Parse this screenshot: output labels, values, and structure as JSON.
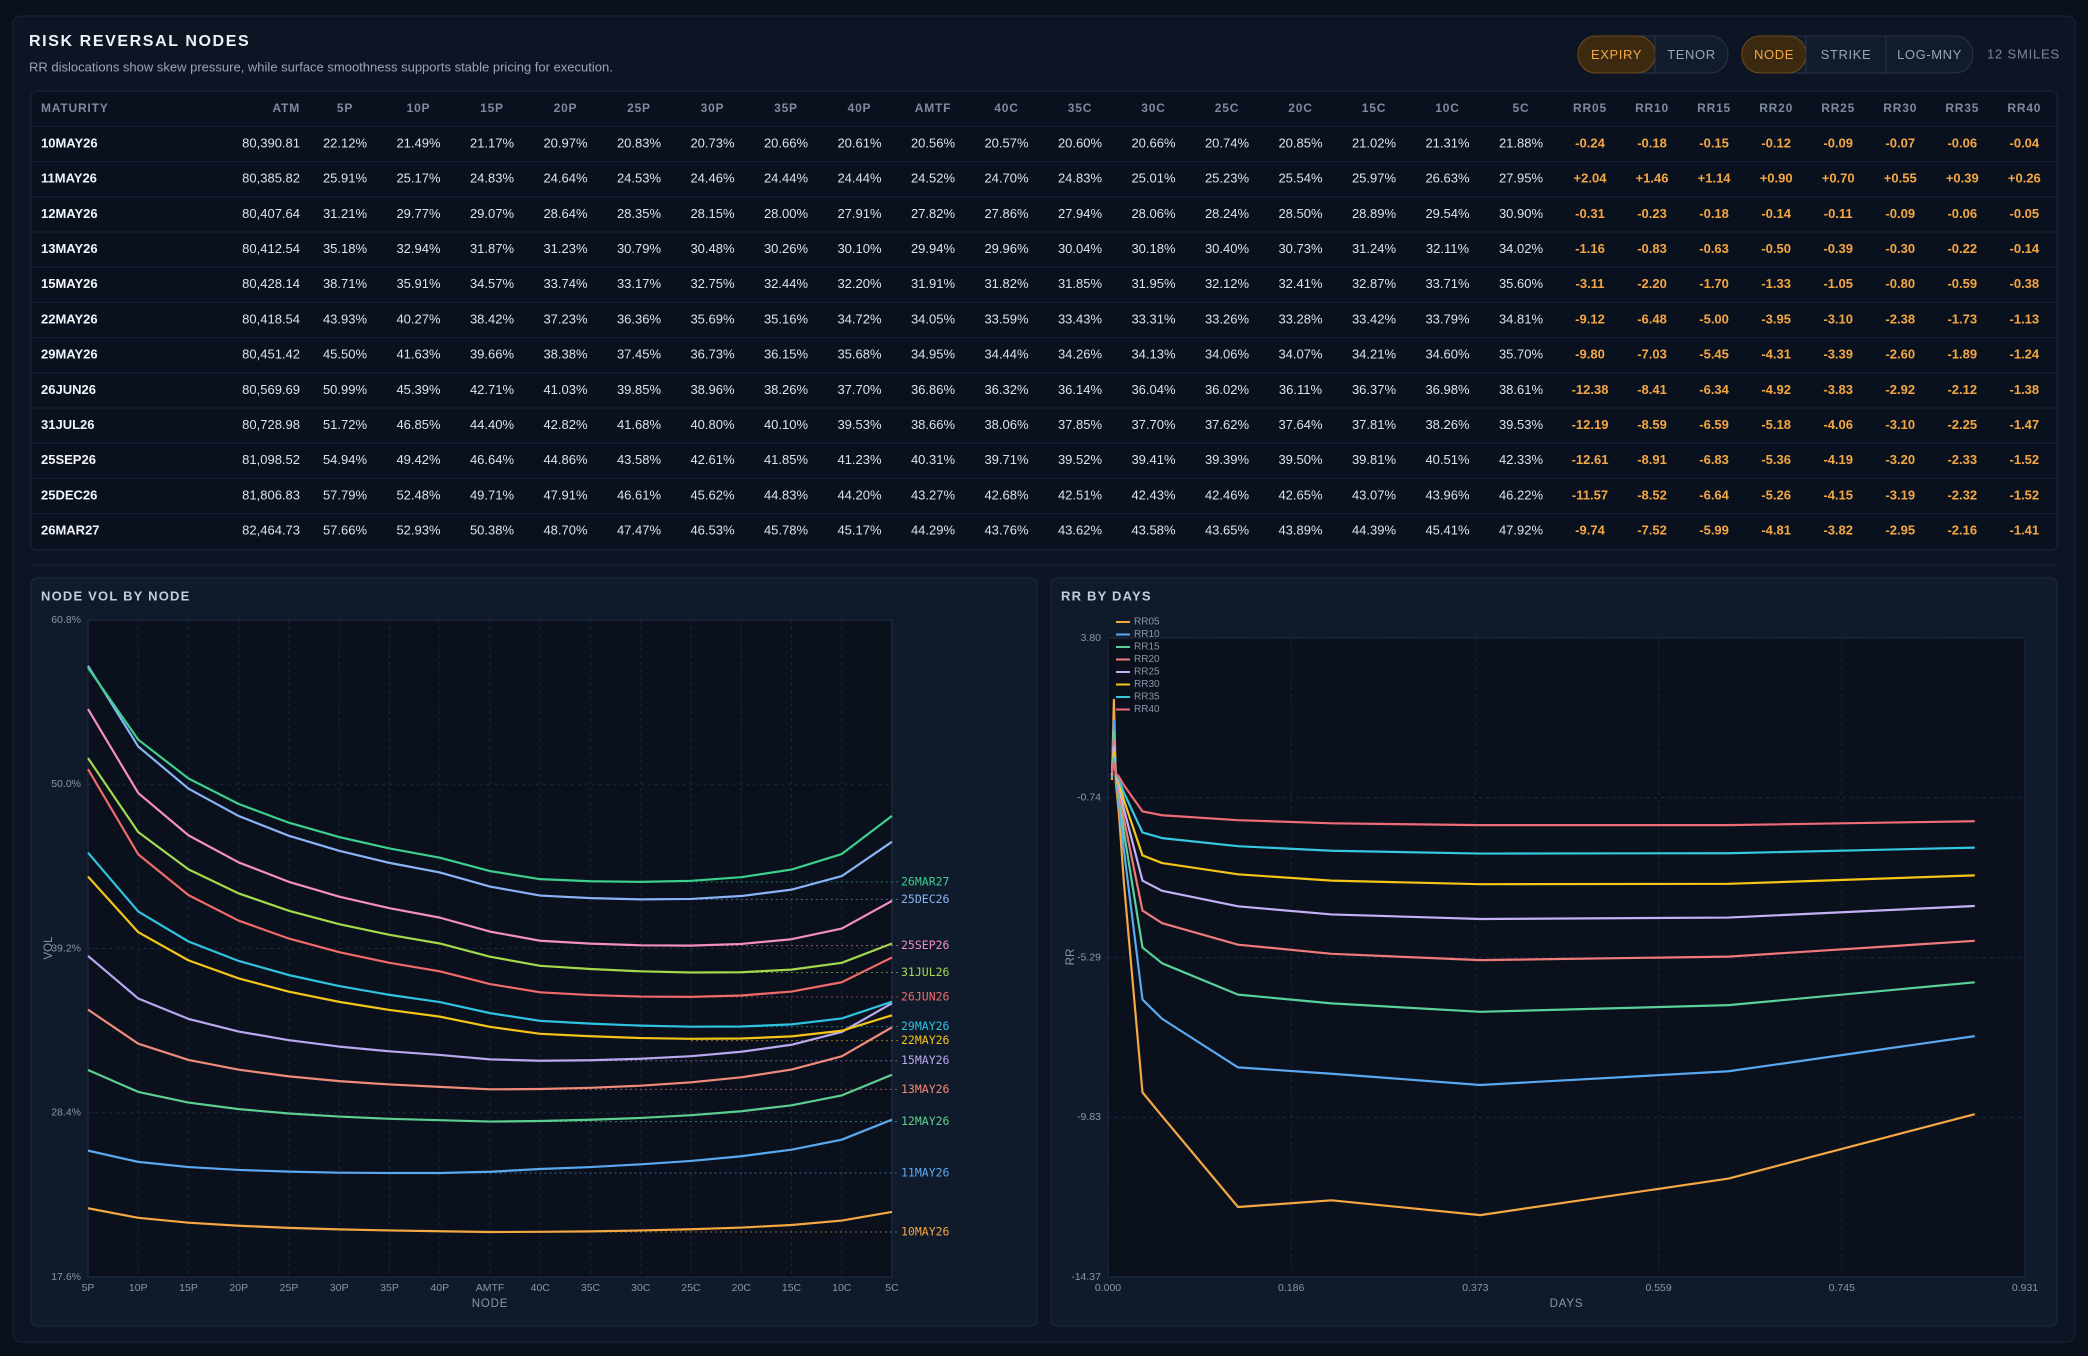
{
  "header": {
    "title": "RISK REVERSAL NODES",
    "subtitle": "RR dislocations show skew pressure, while surface smoothness supports stable pricing for execution.",
    "toggles": [
      {
        "options": [
          "EXPIRY",
          "TENOR"
        ],
        "active": "EXPIRY"
      },
      {
        "options": [
          "NODE",
          "STRIKE",
          "LOG-MNY"
        ],
        "active": "NODE"
      }
    ],
    "count": "12 SMILES"
  },
  "table": {
    "columns": [
      "MATURITY",
      "ATM",
      "5P",
      "10P",
      "15P",
      "20P",
      "25P",
      "30P",
      "35P",
      "40P",
      "AMTF",
      "40C",
      "35C",
      "30C",
      "25C",
      "20C",
      "15C",
      "10C",
      "5C",
      "RR05",
      "RR10",
      "RR15",
      "RR20",
      "RR25",
      "RR30",
      "RR35",
      "RR40"
    ],
    "rows": [
      [
        "10MAY26",
        "80,390.81",
        "22.12%",
        "21.49%",
        "21.17%",
        "20.97%",
        "20.83%",
        "20.73%",
        "20.66%",
        "20.61%",
        "20.56%",
        "20.57%",
        "20.60%",
        "20.66%",
        "20.74%",
        "20.85%",
        "21.02%",
        "21.31%",
        "21.88%",
        "-0.24",
        "-0.18",
        "-0.15",
        "-0.12",
        "-0.09",
        "-0.07",
        "-0.06",
        "-0.04"
      ],
      [
        "11MAY26",
        "80,385.82",
        "25.91%",
        "25.17%",
        "24.83%",
        "24.64%",
        "24.53%",
        "24.46%",
        "24.44%",
        "24.44%",
        "24.52%",
        "24.70%",
        "24.83%",
        "25.01%",
        "25.23%",
        "25.54%",
        "25.97%",
        "26.63%",
        "27.95%",
        "+2.04",
        "+1.46",
        "+1.14",
        "+0.90",
        "+0.70",
        "+0.55",
        "+0.39",
        "+0.26"
      ],
      [
        "12MAY26",
        "80,407.64",
        "31.21%",
        "29.77%",
        "29.07%",
        "28.64%",
        "28.35%",
        "28.15%",
        "28.00%",
        "27.91%",
        "27.82%",
        "27.86%",
        "27.94%",
        "28.06%",
        "28.24%",
        "28.50%",
        "28.89%",
        "29.54%",
        "30.90%",
        "-0.31",
        "-0.23",
        "-0.18",
        "-0.14",
        "-0.11",
        "-0.09",
        "-0.06",
        "-0.05"
      ],
      [
        "13MAY26",
        "80,412.54",
        "35.18%",
        "32.94%",
        "31.87%",
        "31.23%",
        "30.79%",
        "30.48%",
        "30.26%",
        "30.10%",
        "29.94%",
        "29.96%",
        "30.04%",
        "30.18%",
        "30.40%",
        "30.73%",
        "31.24%",
        "32.11%",
        "34.02%",
        "-1.16",
        "-0.83",
        "-0.63",
        "-0.50",
        "-0.39",
        "-0.30",
        "-0.22",
        "-0.14"
      ],
      [
        "15MAY26",
        "80,428.14",
        "38.71%",
        "35.91%",
        "34.57%",
        "33.74%",
        "33.17%",
        "32.75%",
        "32.44%",
        "32.20%",
        "31.91%",
        "31.82%",
        "31.85%",
        "31.95%",
        "32.12%",
        "32.41%",
        "32.87%",
        "33.71%",
        "35.60%",
        "-3.11",
        "-2.20",
        "-1.70",
        "-1.33",
        "-1.05",
        "-0.80",
        "-0.59",
        "-0.38"
      ],
      [
        "22MAY26",
        "80,418.54",
        "43.93%",
        "40.27%",
        "38.42%",
        "37.23%",
        "36.36%",
        "35.69%",
        "35.16%",
        "34.72%",
        "34.05%",
        "33.59%",
        "33.43%",
        "33.31%",
        "33.26%",
        "33.28%",
        "33.42%",
        "33.79%",
        "34.81%",
        "-9.12",
        "-6.48",
        "-5.00",
        "-3.95",
        "-3.10",
        "-2.38",
        "-1.73",
        "-1.13"
      ],
      [
        "29MAY26",
        "80,451.42",
        "45.50%",
        "41.63%",
        "39.66%",
        "38.38%",
        "37.45%",
        "36.73%",
        "36.15%",
        "35.68%",
        "34.95%",
        "34.44%",
        "34.26%",
        "34.13%",
        "34.06%",
        "34.07%",
        "34.21%",
        "34.60%",
        "35.70%",
        "-9.80",
        "-7.03",
        "-5.45",
        "-4.31",
        "-3.39",
        "-2.60",
        "-1.89",
        "-1.24"
      ],
      [
        "26JUN26",
        "80,569.69",
        "50.99%",
        "45.39%",
        "42.71%",
        "41.03%",
        "39.85%",
        "38.96%",
        "38.26%",
        "37.70%",
        "36.86%",
        "36.32%",
        "36.14%",
        "36.04%",
        "36.02%",
        "36.11%",
        "36.37%",
        "36.98%",
        "38.61%",
        "-12.38",
        "-8.41",
        "-6.34",
        "-4.92",
        "-3.83",
        "-2.92",
        "-2.12",
        "-1.38"
      ],
      [
        "31JUL26",
        "80,728.98",
        "51.72%",
        "46.85%",
        "44.40%",
        "42.82%",
        "41.68%",
        "40.80%",
        "40.10%",
        "39.53%",
        "38.66%",
        "38.06%",
        "37.85%",
        "37.70%",
        "37.62%",
        "37.64%",
        "37.81%",
        "38.26%",
        "39.53%",
        "-12.19",
        "-8.59",
        "-6.59",
        "-5.18",
        "-4.06",
        "-3.10",
        "-2.25",
        "-1.47"
      ],
      [
        "25SEP26",
        "81,098.52",
        "54.94%",
        "49.42%",
        "46.64%",
        "44.86%",
        "43.58%",
        "42.61%",
        "41.85%",
        "41.23%",
        "40.31%",
        "39.71%",
        "39.52%",
        "39.41%",
        "39.39%",
        "39.50%",
        "39.81%",
        "40.51%",
        "42.33%",
        "-12.61",
        "-8.91",
        "-6.83",
        "-5.36",
        "-4.19",
        "-3.20",
        "-2.33",
        "-1.52"
      ],
      [
        "25DEC26",
        "81,806.83",
        "57.79%",
        "52.48%",
        "49.71%",
        "47.91%",
        "46.61%",
        "45.62%",
        "44.83%",
        "44.20%",
        "43.27%",
        "42.68%",
        "42.51%",
        "42.43%",
        "42.46%",
        "42.65%",
        "43.07%",
        "43.96%",
        "46.22%",
        "-11.57",
        "-8.52",
        "-6.64",
        "-5.26",
        "-4.15",
        "-3.19",
        "-2.32",
        "-1.52"
      ],
      [
        "26MAR27",
        "82,464.73",
        "57.66%",
        "52.93%",
        "50.38%",
        "48.70%",
        "47.47%",
        "46.53%",
        "45.78%",
        "45.17%",
        "44.29%",
        "43.76%",
        "43.62%",
        "43.58%",
        "43.65%",
        "43.89%",
        "44.39%",
        "45.41%",
        "47.92%",
        "-9.74",
        "-7.52",
        "-5.99",
        "-4.81",
        "-3.82",
        "-2.95",
        "-2.16",
        "-1.41"
      ]
    ]
  },
  "chart_data": [
    {
      "type": "line",
      "title": "NODE VOL BY NODE",
      "xlabel": "NODE",
      "ylabel": "VOL",
      "categories": [
        "5P",
        "10P",
        "15P",
        "20P",
        "25P",
        "30P",
        "35P",
        "40P",
        "AMTF",
        "40C",
        "35C",
        "30C",
        "25C",
        "20C",
        "15C",
        "10C",
        "5C"
      ],
      "ylim": [
        17.6,
        60.8
      ],
      "yticks": [
        {
          "value": 60.8,
          "label": "60.8%"
        },
        {
          "value": 50.0,
          "label": "50.0%"
        },
        {
          "value": 39.2,
          "label": "39.2%"
        },
        {
          "value": 28.4,
          "label": "28.4%"
        },
        {
          "value": 17.6,
          "label": "17.6%"
        }
      ],
      "grid": true,
      "series": [
        {
          "name": "10MAY26",
          "color": "#f5a742",
          "values": [
            22.12,
            21.49,
            21.17,
            20.97,
            20.83,
            20.73,
            20.66,
            20.61,
            20.56,
            20.57,
            20.6,
            20.66,
            20.74,
            20.85,
            21.02,
            21.31,
            21.88
          ]
        },
        {
          "name": "11MAY26",
          "color": "#5aa9f0",
          "values": [
            25.91,
            25.17,
            24.83,
            24.64,
            24.53,
            24.46,
            24.44,
            24.44,
            24.52,
            24.7,
            24.83,
            25.01,
            25.23,
            25.54,
            25.97,
            26.63,
            27.95
          ]
        },
        {
          "name": "12MAY26",
          "color": "#5ccf8e",
          "values": [
            31.21,
            29.77,
            29.07,
            28.64,
            28.35,
            28.15,
            28.0,
            27.91,
            27.82,
            27.86,
            27.94,
            28.06,
            28.24,
            28.5,
            28.89,
            29.54,
            30.9
          ]
        },
        {
          "name": "13MAY26",
          "color": "#f08a7a",
          "values": [
            35.18,
            32.94,
            31.87,
            31.23,
            30.79,
            30.48,
            30.26,
            30.1,
            29.94,
            29.96,
            30.04,
            30.18,
            30.4,
            30.73,
            31.24,
            32.11,
            34.02
          ]
        },
        {
          "name": "15MAY26",
          "color": "#b9a8f0",
          "values": [
            38.71,
            35.91,
            34.57,
            33.74,
            33.17,
            32.75,
            32.44,
            32.2,
            31.91,
            31.82,
            31.85,
            31.95,
            32.12,
            32.41,
            32.87,
            33.71,
            35.6
          ]
        },
        {
          "name": "22MAY26",
          "color": "#f5c518",
          "values": [
            43.93,
            40.27,
            38.42,
            37.23,
            36.36,
            35.69,
            35.16,
            34.72,
            34.05,
            33.59,
            33.43,
            33.31,
            33.26,
            33.28,
            33.42,
            33.79,
            34.81
          ]
        },
        {
          "name": "29MAY26",
          "color": "#2ec4e0",
          "values": [
            45.5,
            41.63,
            39.66,
            38.38,
            37.45,
            36.73,
            36.15,
            35.68,
            34.95,
            34.44,
            34.26,
            34.13,
            34.06,
            34.07,
            34.21,
            34.6,
            35.7
          ]
        },
        {
          "name": "26JUN26",
          "color": "#f06a6a",
          "values": [
            50.99,
            45.39,
            42.71,
            41.03,
            39.85,
            38.96,
            38.26,
            37.7,
            36.86,
            36.32,
            36.14,
            36.04,
            36.02,
            36.11,
            36.37,
            36.98,
            38.61
          ]
        },
        {
          "name": "31JUL26",
          "color": "#a3d94a",
          "values": [
            51.72,
            46.85,
            44.4,
            42.82,
            41.68,
            40.8,
            40.1,
            39.53,
            38.66,
            38.06,
            37.85,
            37.7,
            37.62,
            37.64,
            37.81,
            38.26,
            39.53
          ]
        },
        {
          "name": "25SEP26",
          "color": "#f48fc0",
          "values": [
            54.94,
            49.42,
            46.64,
            44.86,
            43.58,
            42.61,
            41.85,
            41.23,
            40.31,
            39.71,
            39.52,
            39.41,
            39.39,
            39.5,
            39.81,
            40.51,
            42.33
          ]
        },
        {
          "name": "25DEC26",
          "color": "#8ab4f8",
          "values": [
            57.79,
            52.48,
            49.71,
            47.91,
            46.61,
            45.62,
            44.83,
            44.2,
            43.27,
            42.68,
            42.51,
            42.43,
            42.46,
            42.65,
            43.07,
            43.96,
            46.22
          ]
        },
        {
          "name": "26MAR27",
          "color": "#3ccf8e",
          "values": [
            57.66,
            52.93,
            50.38,
            48.7,
            47.47,
            46.53,
            45.78,
            45.17,
            44.29,
            43.76,
            43.62,
            43.58,
            43.65,
            43.89,
            44.39,
            45.41,
            47.92
          ]
        }
      ]
    },
    {
      "type": "line",
      "title": "RR BY DAYS",
      "xlabel": "DAYS",
      "ylabel": "RR",
      "x": [
        0.004,
        0.006,
        0.008,
        0.011,
        0.016,
        0.035,
        0.055,
        0.132,
        0.227,
        0.378,
        0.63,
        0.88
      ],
      "xlim": [
        0,
        0.931
      ],
      "xticks": [
        {
          "value": 0,
          "label": "0.000"
        },
        {
          "value": 0.186,
          "label": "0.186"
        },
        {
          "value": 0.373,
          "label": "0.373"
        },
        {
          "value": 0.559,
          "label": "0.559"
        },
        {
          "value": 0.745,
          "label": "0.745"
        },
        {
          "value": 0.931,
          "label": "0.931"
        }
      ],
      "ylim": [
        -14.37,
        3.8
      ],
      "yticks": [
        {
          "value": 3.8,
          "label": "3.80"
        },
        -0.74,
        -5.29,
        -9.83,
        -14.37
      ],
      "grid": true,
      "legend": "upper left",
      "series": [
        {
          "name": "RR05",
          "color": "#f5a742",
          "values": [
            -0.24,
            2.04,
            -0.31,
            -1.16,
            -3.11,
            -9.12,
            -9.8,
            -12.38,
            -12.19,
            -12.61,
            -11.57,
            -9.74
          ]
        },
        {
          "name": "RR10",
          "color": "#5aa9f0",
          "values": [
            -0.18,
            1.46,
            -0.23,
            -0.83,
            -2.2,
            -6.48,
            -7.03,
            -8.41,
            -8.59,
            -8.91,
            -8.52,
            -7.52
          ]
        },
        {
          "name": "RR15",
          "color": "#5ad09a",
          "values": [
            -0.15,
            1.14,
            -0.18,
            -0.63,
            -1.7,
            -5.0,
            -5.45,
            -6.34,
            -6.59,
            -6.83,
            -6.64,
            -5.99
          ]
        },
        {
          "name": "RR20",
          "color": "#f07a7a",
          "values": [
            -0.12,
            0.9,
            -0.14,
            -0.5,
            -1.33,
            -3.95,
            -4.31,
            -4.92,
            -5.18,
            -5.36,
            -5.26,
            -4.81
          ]
        },
        {
          "name": "RR25",
          "color": "#c4b0f5",
          "values": [
            -0.09,
            0.7,
            -0.11,
            -0.39,
            -1.05,
            -3.1,
            -3.39,
            -3.83,
            -4.06,
            -4.19,
            -4.15,
            -3.82
          ]
        },
        {
          "name": "RR30",
          "color": "#f5c518",
          "values": [
            -0.07,
            0.55,
            -0.09,
            -0.3,
            -0.8,
            -2.38,
            -2.6,
            -2.92,
            -3.1,
            -3.2,
            -3.19,
            -2.95
          ]
        },
        {
          "name": "RR35",
          "color": "#35c8e0",
          "values": [
            -0.06,
            0.39,
            -0.06,
            -0.22,
            -0.59,
            -1.73,
            -1.89,
            -2.12,
            -2.25,
            -2.33,
            -2.32,
            -2.16
          ]
        },
        {
          "name": "RR40",
          "color": "#ef6b78",
          "values": [
            -0.04,
            0.26,
            -0.05,
            -0.14,
            -0.38,
            -1.13,
            -1.24,
            -1.38,
            -1.47,
            -1.52,
            -1.52,
            -1.41
          ]
        }
      ]
    }
  ]
}
